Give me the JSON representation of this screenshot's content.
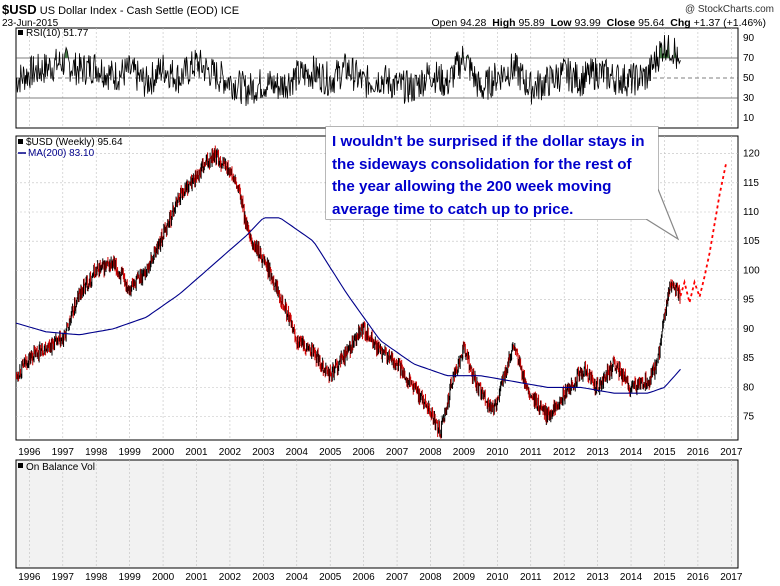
{
  "header": {
    "symbol": "$USD",
    "description": "US Dollar Index - Cash Settle (EOD) ICE",
    "date": "23-Jun-2015",
    "brand": "@ StockCharts.com",
    "open_label": "Open",
    "open": "94.28",
    "high_label": "High",
    "high": "95.89",
    "low_label": "Low",
    "low": "93.99",
    "close_label": "Close",
    "close": "95.64",
    "chg_label": "Chg",
    "chg": "+1.37 (+1.46%)"
  },
  "annotation": {
    "text": "I wouldn't be surprised if the dollar stays in the sideways consolidation for the rest of the year allowing the 200 week moving average time to catch up to price.",
    "color": "#0000cc"
  },
  "colors": {
    "price_up": "#000000",
    "price_down": "#cc0000",
    "ma": "#00008b",
    "rsi": "#000000",
    "rsi_extreme_fill": "#2e6b2e",
    "projection": "#ff0000",
    "grid": "#c0c0c0",
    "pane_bg": "#ffffff",
    "obv_pane_bg": "#f2f2f2"
  },
  "chart_data": [
    {
      "type": "line",
      "title": "RSI(10) 51.77",
      "legend": [
        "RSI(10) 51.77"
      ],
      "ylim": [
        0,
        100
      ],
      "yticks": [
        10,
        30,
        50,
        70,
        90
      ],
      "reference_lines": [
        30,
        50,
        70
      ],
      "series": [
        {
          "name": "RSI(10)",
          "x": [
            1995.6,
            1996.0,
            1996.5,
            1997.0,
            1997.5,
            1998.0,
            1998.5,
            1999.0,
            1999.5,
            2000.0,
            2000.5,
            2001.0,
            2001.5,
            2002.0,
            2002.5,
            2003.0,
            2003.5,
            2004.0,
            2004.5,
            2005.0,
            2005.5,
            2006.0,
            2006.5,
            2007.0,
            2007.5,
            2008.0,
            2008.5,
            2009.0,
            2009.5,
            2010.0,
            2010.5,
            2011.0,
            2011.5,
            2012.0,
            2012.5,
            2013.0,
            2013.5,
            2014.0,
            2014.5,
            2015.0,
            2015.3,
            2015.48
          ],
          "values": [
            48,
            55,
            60,
            66,
            58,
            62,
            52,
            57,
            45,
            60,
            50,
            65,
            54,
            47,
            38,
            45,
            42,
            52,
            56,
            48,
            60,
            45,
            50,
            42,
            40,
            55,
            44,
            72,
            38,
            52,
            60,
            40,
            46,
            55,
            48,
            56,
            50,
            48,
            52,
            85,
            78,
            51.77
          ]
        }
      ]
    },
    {
      "type": "line",
      "title": "$USD (Weekly) 95.64",
      "legend": [
        "$USD (Weekly) 95.64",
        "MA(200) 83.10"
      ],
      "x_range": [
        1995.6,
        2017.2
      ],
      "xticks": [
        "1996",
        "1997",
        "1998",
        "1999",
        "2000",
        "2001",
        "2002",
        "2003",
        "2004",
        "2005",
        "2006",
        "2007",
        "2008",
        "2009",
        "2010",
        "2011",
        "2012",
        "2013",
        "2014",
        "2015",
        "2016",
        "2017"
      ],
      "ylim": [
        71,
        123
      ],
      "yticks": [
        75,
        80,
        85,
        90,
        95,
        100,
        105,
        110,
        115,
        120
      ],
      "series": [
        {
          "name": "$USD (Weekly)",
          "x": [
            1995.6,
            1996.0,
            1996.5,
            1997.0,
            1997.5,
            1998.0,
            1998.5,
            1999.0,
            1999.5,
            2000.0,
            2000.5,
            2001.0,
            2001.5,
            2002.0,
            2002.3,
            2002.6,
            2003.0,
            2003.5,
            2004.0,
            2004.5,
            2005.0,
            2005.5,
            2006.0,
            2006.5,
            2007.0,
            2007.5,
            2008.0,
            2008.3,
            2008.6,
            2009.0,
            2009.2,
            2009.5,
            2009.9,
            2010.2,
            2010.5,
            2010.9,
            2011.2,
            2011.5,
            2011.9,
            2012.2,
            2012.6,
            2013.0,
            2013.5,
            2014.0,
            2014.5,
            2014.8,
            2015.0,
            2015.2,
            2015.48
          ],
          "values": [
            82,
            85,
            87,
            88,
            96,
            100,
            101,
            97,
            100,
            106,
            113,
            116,
            120,
            117,
            113,
            105,
            102,
            96,
            88,
            86,
            82,
            86,
            90,
            86,
            84,
            80,
            76,
            72,
            80,
            87,
            83,
            79,
            76,
            82,
            87,
            79,
            77,
            75,
            78,
            80,
            83,
            80,
            84,
            80,
            81,
            84,
            92,
            98,
            95.64
          ]
        },
        {
          "name": "MA(200)",
          "x": [
            1995.6,
            1996.5,
            1997.5,
            1998.5,
            1999.5,
            2000.5,
            2001.5,
            2002.5,
            2003.0,
            2003.5,
            2004.5,
            2005.5,
            2006.5,
            2007.5,
            2008.5,
            2009.5,
            2010.5,
            2011.5,
            2012.5,
            2013.5,
            2014.5,
            2015.0,
            2015.48
          ],
          "values": [
            91,
            89.5,
            89,
            90,
            92,
            96,
            101,
            106,
            109,
            109,
            105,
            96,
            88,
            84,
            82,
            82,
            81,
            80,
            80,
            79,
            79,
            80,
            83.1
          ]
        },
        {
          "name": "Projection",
          "x": [
            2015.48,
            2015.6,
            2015.75,
            2015.9,
            2016.05,
            2016.2,
            2016.35,
            2016.5,
            2016.65,
            2016.85
          ],
          "values": [
            95.64,
            98,
            94.5,
            98,
            95.5,
            99,
            103,
            108,
            113,
            118.5
          ]
        }
      ]
    },
    {
      "type": "line",
      "title": "On Balance Vol",
      "legend": [
        "On Balance Vol"
      ],
      "x_range": [
        1995.6,
        2017.2
      ],
      "xticks": [
        "1996",
        "1997",
        "1998",
        "1999",
        "2000",
        "2001",
        "2002",
        "2003",
        "2004",
        "2005",
        "2006",
        "2007",
        "2008",
        "2009",
        "2010",
        "2011",
        "2012",
        "2013",
        "2014",
        "2015",
        "2016",
        "2017"
      ],
      "series": []
    }
  ]
}
